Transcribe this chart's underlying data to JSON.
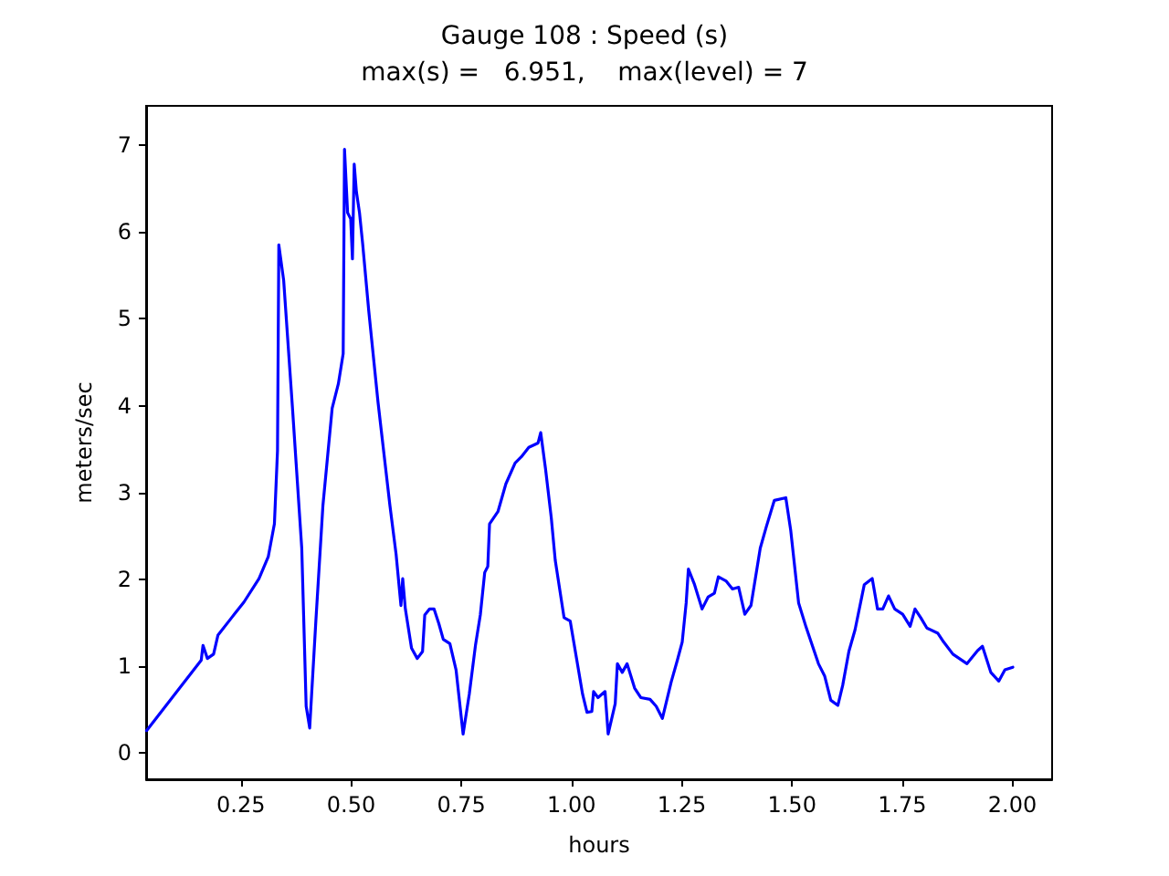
{
  "chart_data": {
    "type": "line",
    "title": "Gauge 108 : Speed (s)",
    "subtitle": "max(s) =   6.951,    max(level) = 7",
    "xlabel": "hours",
    "ylabel": "meters/sec",
    "x": [
      0.036,
      0.16,
      0.164,
      0.174,
      0.188,
      0.198,
      0.229,
      0.257,
      0.291,
      0.312,
      0.326,
      0.333,
      0.336,
      0.347,
      0.367,
      0.388,
      0.398,
      0.406,
      0.42,
      0.436,
      0.457,
      0.471,
      0.482,
      0.485,
      0.492,
      0.499,
      0.503,
      0.507,
      0.512,
      0.519,
      0.526,
      0.54,
      0.561,
      0.588,
      0.602,
      0.613,
      0.617,
      0.623,
      0.637,
      0.65,
      0.662,
      0.667,
      0.678,
      0.688,
      0.699,
      0.709,
      0.724,
      0.738,
      0.754,
      0.768,
      0.782,
      0.793,
      0.803,
      0.81,
      0.814,
      0.833,
      0.851,
      0.872,
      0.886,
      0.903,
      0.924,
      0.93,
      0.941,
      0.954,
      0.963,
      0.983,
      0.997,
      1.011,
      1.025,
      1.035,
      1.046,
      1.05,
      1.06,
      1.076,
      1.083,
      1.099,
      1.104,
      1.115,
      1.126,
      1.143,
      1.157,
      1.178,
      1.192,
      1.206,
      1.226,
      1.24,
      1.251,
      1.26,
      1.265,
      1.279,
      1.296,
      1.31,
      1.324,
      1.333,
      1.351,
      1.365,
      1.379,
      1.393,
      1.407,
      1.428,
      1.442,
      1.46,
      1.486,
      1.497,
      1.515,
      1.532,
      1.56,
      1.574,
      1.588,
      1.604,
      1.615,
      1.629,
      1.643,
      1.664,
      1.682,
      1.694,
      1.706,
      1.719,
      1.733,
      1.751,
      1.768,
      1.779,
      1.792,
      1.806,
      1.831,
      1.844,
      1.865,
      1.897,
      1.921,
      1.932,
      1.951,
      1.969,
      1.983,
      2.001
    ],
    "series": [
      {
        "color": "#0000ff",
        "values": [
          0.26,
          1.07,
          1.24,
          1.09,
          1.14,
          1.36,
          1.56,
          1.74,
          2.01,
          2.26,
          2.64,
          3.48,
          5.85,
          5.44,
          3.97,
          2.36,
          0.54,
          0.29,
          1.52,
          2.85,
          3.97,
          4.25,
          4.6,
          6.95,
          6.22,
          6.15,
          5.69,
          6.78,
          6.46,
          6.22,
          5.87,
          5.09,
          4.04,
          2.85,
          2.29,
          1.7,
          2.01,
          1.66,
          1.21,
          1.09,
          1.17,
          1.59,
          1.66,
          1.66,
          1.49,
          1.31,
          1.26,
          0.96,
          0.22,
          0.68,
          1.24,
          1.59,
          2.08,
          2.15,
          2.64,
          2.78,
          3.1,
          3.34,
          3.41,
          3.52,
          3.57,
          3.69,
          3.27,
          2.71,
          2.22,
          1.56,
          1.52,
          1.1,
          0.68,
          0.47,
          0.48,
          0.71,
          0.64,
          0.71,
          0.22,
          0.57,
          1.03,
          0.93,
          1.03,
          0.75,
          0.64,
          0.62,
          0.54,
          0.4,
          0.82,
          1.07,
          1.28,
          1.73,
          2.12,
          1.94,
          1.66,
          1.8,
          1.84,
          2.03,
          1.98,
          1.89,
          1.91,
          1.6,
          1.7,
          2.36,
          2.61,
          2.91,
          2.94,
          2.57,
          1.73,
          1.45,
          1.03,
          0.89,
          0.61,
          0.55,
          0.78,
          1.17,
          1.42,
          1.94,
          2.01,
          1.66,
          1.66,
          1.81,
          1.66,
          1.6,
          1.46,
          1.66,
          1.56,
          1.44,
          1.38,
          1.28,
          1.14,
          1.03,
          1.18,
          1.23,
          0.93,
          0.83,
          0.96,
          0.99
        ]
      }
    ],
    "xlim": [
      0.035,
      2.09
    ],
    "ylim": [
      -0.3,
      7.45
    ],
    "xticks": [
      {
        "value": 0.25,
        "label": "0.25"
      },
      {
        "value": 0.5,
        "label": "0.50"
      },
      {
        "value": 0.75,
        "label": "0.75"
      },
      {
        "value": 1,
        "label": "1.00"
      },
      {
        "value": 1.25,
        "label": "1.25"
      },
      {
        "value": 1.5,
        "label": "1.50"
      },
      {
        "value": 1.75,
        "label": "1.75"
      },
      {
        "value": 2,
        "label": "2.00"
      }
    ],
    "yticks": [
      0,
      1,
      2,
      3,
      4,
      5,
      6,
      7
    ],
    "grid": false,
    "marker": "none",
    "line_style": "solid"
  }
}
